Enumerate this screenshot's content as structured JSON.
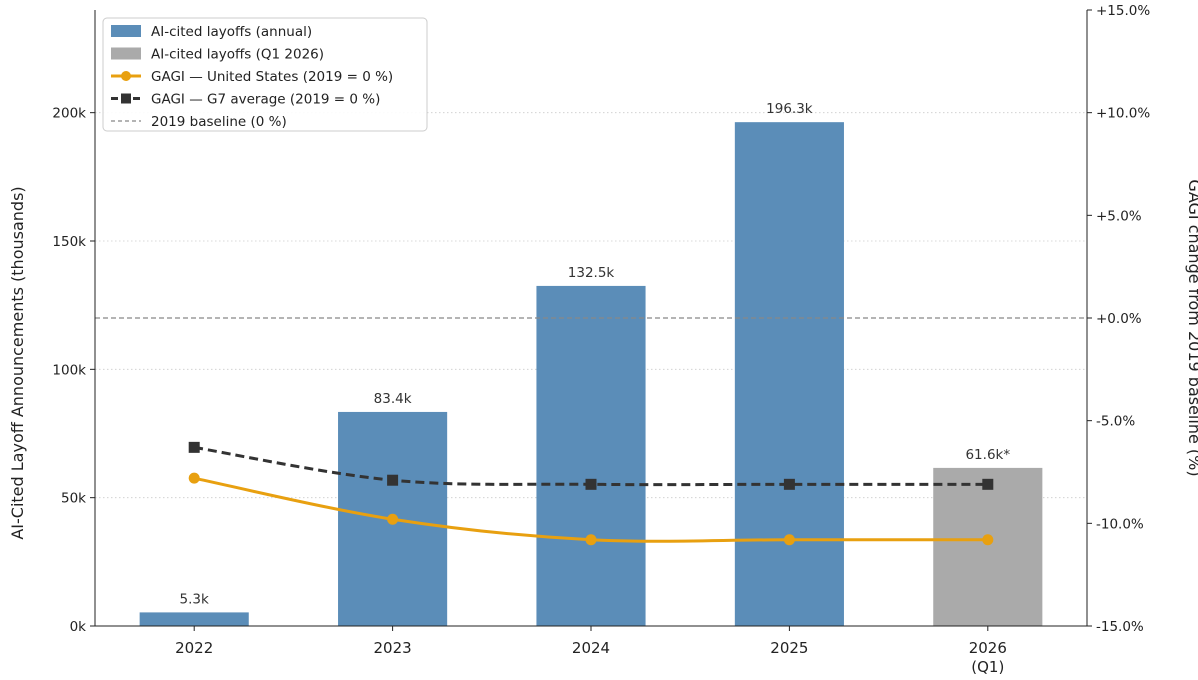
{
  "chart_data": {
    "type": "bar",
    "title": "",
    "categories": [
      [
        "2022"
      ],
      [
        "2023"
      ],
      [
        "2024"
      ],
      [
        "2025"
      ],
      [
        "2026",
        "(Q1)"
      ]
    ],
    "bars": [
      {
        "value": 5.3,
        "label": "5.3k",
        "series": 0
      },
      {
        "value": 83.4,
        "label": "83.4k",
        "series": 0
      },
      {
        "value": 132.5,
        "label": "132.5k",
        "series": 0
      },
      {
        "value": 196.3,
        "label": "196.3k",
        "series": 0
      },
      {
        "value": 61.6,
        "label": "61.6k*",
        "series": 1
      }
    ],
    "bar_series": [
      {
        "name": "AI-cited layoffs (annual)",
        "color": "#5b8db8"
      },
      {
        "name": "AI-cited layoffs (Q1 2026)",
        "color": "#aaaaaa"
      }
    ],
    "line_series": [
      {
        "name": "GAGI — United States (2019 = 0 %)",
        "color": "#e8a010",
        "marker": "circle",
        "dash": "solid",
        "values": [
          -7.8,
          -9.8,
          -10.8,
          -10.8,
          -10.8
        ]
      },
      {
        "name": "GAGI — G7 average (2019 = 0 %)",
        "color": "#333333",
        "marker": "square",
        "dash": "dashed",
        "values": [
          -6.3,
          -7.9,
          -8.1,
          -8.1,
          -8.1
        ]
      }
    ],
    "baseline": {
      "name": "2019 baseline (0 %)",
      "value": 0,
      "color": "#888888"
    },
    "y_left": {
      "label": "AI-Cited Layoff Announcements (thousands)",
      "lim": [
        0,
        240
      ],
      "ticks": [
        0,
        50,
        100,
        150,
        200
      ],
      "tick_labels": [
        "0k",
        "50k",
        "100k",
        "150k",
        "200k"
      ]
    },
    "y_right": {
      "label": "GAGI change from 2019 baseline (%)",
      "lim": [
        -15,
        15
      ],
      "ticks": [
        -15,
        -10,
        -5,
        0,
        5,
        10,
        15
      ],
      "tick_labels": [
        "-15.0%",
        "-10.0%",
        "-5.0%",
        "+0.0%",
        "+5.0%",
        "+10.0%",
        "+15.0%"
      ]
    },
    "grid": "horizontal-dotted",
    "legend_position": "top-left"
  }
}
